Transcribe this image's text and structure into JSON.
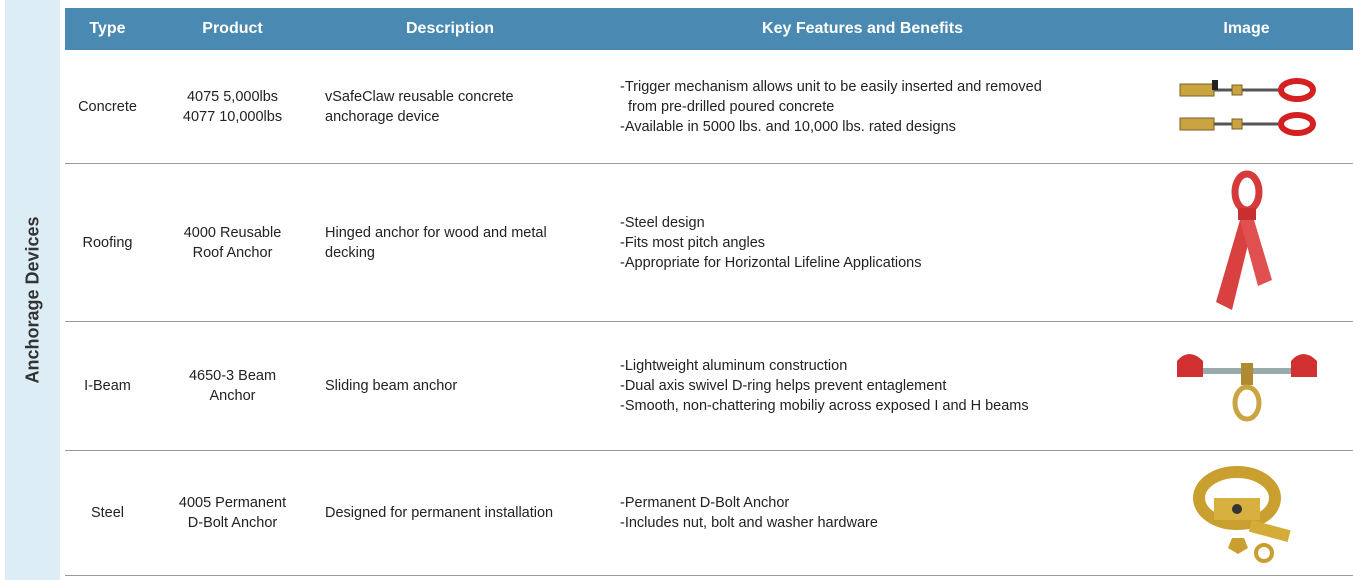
{
  "side_label": "Anchorage Devices",
  "table": {
    "headers": [
      "Type",
      "Product",
      "Description",
      "Key Features and Benefits",
      "Image"
    ],
    "rows": [
      {
        "type": "Concrete",
        "product": [
          "4075 5,000lbs",
          "4077 10,000lbs"
        ],
        "description": "vSafeClaw reusable concrete anchorage device",
        "features": [
          "-Trigger mechanism allows unit to be easily inserted and removed from pre-drilled poured concrete",
          "-Available in 5000 lbs. and 10,000 lbs. rated designs"
        ]
      },
      {
        "type": "Roofing",
        "product": [
          "4000 Reusable",
          "Roof Anchor"
        ],
        "description": "Hinged anchor for wood and metal decking",
        "features": [
          "-Steel design",
          "-Fits most pitch angles",
          "-Appropriate for Horizontal Lifeline Applications"
        ]
      },
      {
        "type": "I-Beam",
        "product": [
          "4650-3 Beam",
          "Anchor"
        ],
        "description": "Sliding beam anchor",
        "features": [
          "-Lightweight aluminum construction",
          "-Dual axis swivel D-ring helps prevent entaglement",
          "-Smooth, non-chattering mobiliy across exposed I and H beams"
        ]
      },
      {
        "type": "Steel",
        "product": [
          "4005 Permanent",
          "D-Bolt Anchor"
        ],
        "description": "Designed for permanent installation",
        "features": [
          "-Permanent D-Bolt Anchor",
          "-Includes nut, bolt and washer hardware"
        ]
      }
    ]
  }
}
